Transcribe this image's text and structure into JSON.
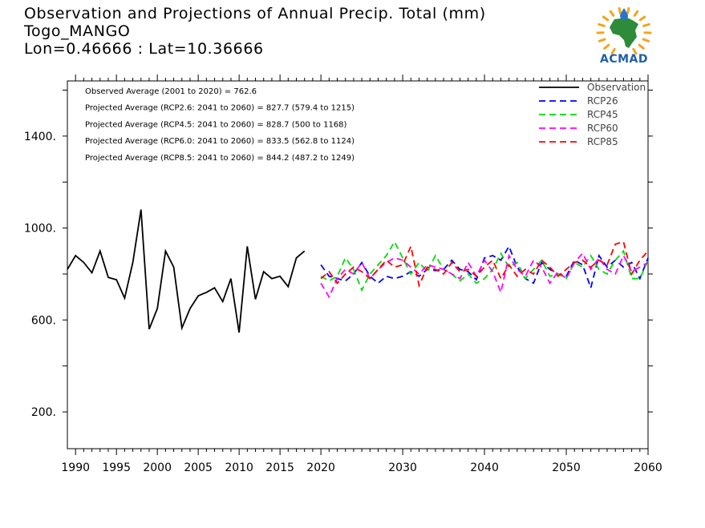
{
  "header": {
    "title": "Observation and Projections of Annual Precip. Total (mm)",
    "location": "Togo_MANGO",
    "coords": "Lon=0.46666 : Lat=10.36666"
  },
  "logo": {
    "text": "ACMAD",
    "colors": {
      "africa": "#2e8b3a",
      "sun": "#f2a51a",
      "drop": "#2a74c9",
      "text": "#1f5fa8"
    }
  },
  "annotations": [
    "Observed Average (2001 to 2020) = 762.6",
    "Projected Average (RCP2.6: 2041 to 2060) = 827.7 (579.4 to 1215)",
    "Projected Average (RCP4.5: 2041 to 2060) = 828.7 (500 to 1168)",
    "Projected Average (RCP6.0: 2041 to 2060) = 833.5 (562.8 to 1124)",
    "Projected Average (RCP8.5: 2041 to 2060) = 844.2 (487.2 to 1249)"
  ],
  "chart_data": {
    "type": "line",
    "xlabel": "",
    "ylabel": "",
    "xlim": [
      1989,
      2060
    ],
    "ylim": [
      40,
      1640
    ],
    "x_ticks": [
      1990,
      1995,
      2000,
      2005,
      2010,
      2015,
      2020,
      2030,
      2040,
      2050,
      2060
    ],
    "y_ticks": [
      200,
      600,
      1000,
      1400
    ],
    "y_tick_labels": [
      "200.",
      "600.",
      "1000.",
      "1400."
    ],
    "grid": false,
    "legend_position": "top-right",
    "series": [
      {
        "name": "Observation",
        "color": "#000000",
        "dash": "solid",
        "x": [
          1989,
          1990,
          1991,
          1992,
          1993,
          1994,
          1995,
          1996,
          1997,
          1998,
          1999,
          2000,
          2001,
          2002,
          2003,
          2004,
          2005,
          2006,
          2007,
          2008,
          2009,
          2010,
          2011,
          2012,
          2013,
          2014,
          2015,
          2016,
          2017,
          2018,
          2019,
          2020
        ],
        "y": [
          820,
          880,
          850,
          805,
          900,
          785,
          775,
          695,
          850,
          1080,
          560,
          650,
          900,
          830,
          565,
          650,
          705,
          720,
          740,
          680,
          780,
          545,
          920,
          690,
          810,
          780,
          790,
          745,
          870,
          900,
          null,
          null
        ]
      },
      {
        "name": "RCP26",
        "color": "#0000ff",
        "dash": "dashed",
        "x": [
          2020,
          2021,
          2022,
          2023,
          2024,
          2025,
          2026,
          2027,
          2028,
          2029,
          2030,
          2031,
          2032,
          2033,
          2034,
          2035,
          2036,
          2037,
          2038,
          2039,
          2040,
          2041,
          2042,
          2043,
          2044,
          2045,
          2046,
          2047,
          2048,
          2049,
          2050,
          2051,
          2052,
          2053,
          2054,
          2055,
          2056,
          2057,
          2058,
          2059,
          2060
        ],
        "y": [
          840,
          790,
          780,
          770,
          800,
          850,
          790,
          760,
          790,
          780,
          790,
          810,
          790,
          820,
          815,
          820,
          860,
          820,
          810,
          775,
          870,
          880,
          860,
          920,
          830,
          780,
          760,
          850,
          820,
          800,
          790,
          860,
          840,
          740,
          880,
          830,
          860,
          830,
          850,
          780,
          870
        ]
      },
      {
        "name": "RCP45",
        "color": "#00dd00",
        "dash": "dashed",
        "x": [
          2020,
          2021,
          2022,
          2023,
          2024,
          2025,
          2026,
          2027,
          2028,
          2029,
          2030,
          2031,
          2032,
          2033,
          2034,
          2035,
          2036,
          2037,
          2038,
          2039,
          2040,
          2041,
          2042,
          2043,
          2044,
          2045,
          2046,
          2047,
          2048,
          2049,
          2050,
          2051,
          2052,
          2053,
          2054,
          2055,
          2056,
          2057,
          2058,
          2059,
          2060
        ],
        "y": [
          790,
          770,
          790,
          870,
          820,
          730,
          800,
          840,
          880,
          940,
          870,
          800,
          850,
          810,
          880,
          820,
          800,
          770,
          800,
          760,
          780,
          820,
          890,
          830,
          850,
          780,
          820,
          860,
          790,
          800,
          780,
          850,
          830,
          880,
          820,
          800,
          860,
          900,
          780,
          780,
          860
        ]
      },
      {
        "name": "RCP60",
        "color": "#ff00ff",
        "dash": "dashed",
        "x": [
          2020,
          2021,
          2022,
          2023,
          2024,
          2025,
          2026,
          2027,
          2028,
          2029,
          2030,
          2031,
          2032,
          2033,
          2034,
          2035,
          2036,
          2037,
          2038,
          2039,
          2040,
          2041,
          2042,
          2043,
          2044,
          2045,
          2046,
          2047,
          2048,
          2049,
          2050,
          2051,
          2052,
          2053,
          2054,
          2055,
          2056,
          2057,
          2058,
          2059,
          2060
        ],
        "y": [
          760,
          700,
          780,
          820,
          800,
          850,
          780,
          820,
          850,
          870,
          860,
          830,
          800,
          840,
          830,
          820,
          800,
          780,
          850,
          790,
          860,
          810,
          720,
          880,
          820,
          790,
          860,
          830,
          760,
          810,
          780,
          850,
          890,
          820,
          870,
          820,
          800,
          880,
          810,
          830,
          850
        ]
      },
      {
        "name": "RCP85",
        "color": "#ff0000",
        "dash": "dashed",
        "x": [
          2020,
          2021,
          2022,
          2023,
          2024,
          2025,
          2026,
          2027,
          2028,
          2029,
          2030,
          2031,
          2032,
          2033,
          2034,
          2035,
          2036,
          2037,
          2038,
          2039,
          2040,
          2041,
          2042,
          2043,
          2044,
          2045,
          2046,
          2047,
          2048,
          2049,
          2050,
          2051,
          2052,
          2053,
          2054,
          2055,
          2056,
          2057,
          2058,
          2059,
          2060
        ],
        "y": [
          780,
          810,
          760,
          800,
          830,
          810,
          780,
          820,
          860,
          830,
          840,
          920,
          750,
          830,
          820,
          800,
          850,
          810,
          820,
          790,
          830,
          860,
          780,
          840,
          790,
          820,
          800,
          860,
          830,
          790,
          820,
          850,
          860,
          830,
          860,
          840,
          930,
          940,
          800,
          860,
          900
        ]
      }
    ]
  }
}
